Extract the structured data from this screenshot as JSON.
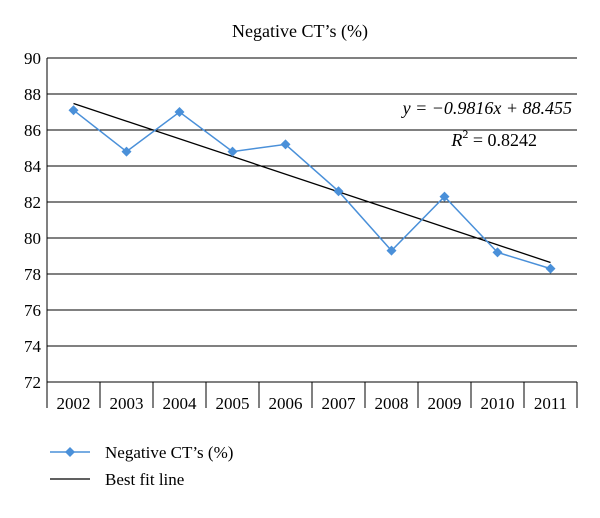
{
  "chart_data": {
    "type": "line",
    "title": "Negative CT’s (%)",
    "xlabel": "",
    "ylabel": "",
    "categories": [
      "2002",
      "2003",
      "2004",
      "2005",
      "2006",
      "2007",
      "2008",
      "2009",
      "2010",
      "2011"
    ],
    "ylim": [
      72,
      90
    ],
    "yticks": [
      "72",
      "74",
      "76",
      "78",
      "80",
      "82",
      "84",
      "86",
      "88",
      "90"
    ],
    "grid": true,
    "legend_position": "bottom-left",
    "series": [
      {
        "name": "Negative CT’s (%)",
        "color": "#4a90d9",
        "marker": "diamond",
        "values": [
          87.1,
          84.8,
          87.0,
          84.8,
          85.2,
          82.6,
          79.3,
          82.3,
          79.2,
          78.3
        ]
      }
    ],
    "trendline": {
      "name": "Best fit line",
      "color": "#000000",
      "slope": -0.9816,
      "intercept": 88.455
    },
    "annotations": {
      "equation": "y = −0.9816x + 88.455",
      "r_squared_label": "R",
      "r_squared_value": " = 0.8242",
      "r_squared_exponent": "2"
    }
  }
}
